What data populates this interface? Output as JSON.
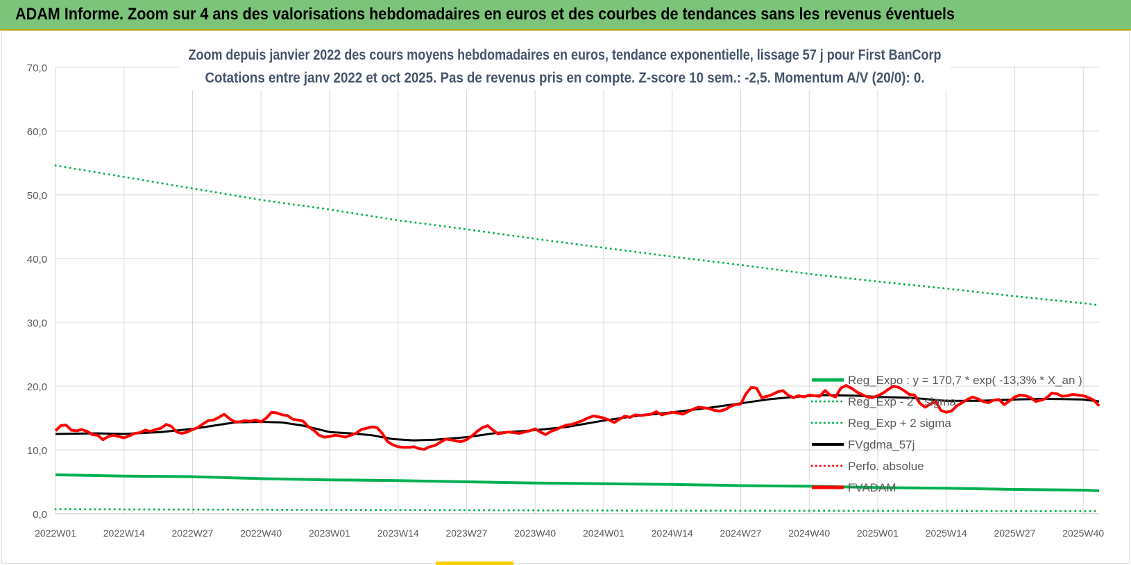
{
  "banner": {
    "title": "ADAM Informe. Zoom sur 4 ans des valorisations hebdomadaires en euros et des courbes de tendances sans les revenus éventuels",
    "color": "#7cc47a"
  },
  "chart_data": {
    "type": "line",
    "title": "Zoom depuis janvier 2022 des cours moyens hebdomadaires en euros, tendance exponentielle, lissage 57 j pour First BanCorp",
    "subtitle": "Cotations entre janv 2022 et oct 2025. Pas de revenus pris en compte. Z-score 10 sem.: -2,5.  Momentum A/V (20/0): 0.",
    "xlabel": "",
    "ylabel": "",
    "ylim": [
      0,
      70
    ],
    "yticks": [
      "0,0",
      "10,0",
      "20,0",
      "30,0",
      "40,0",
      "50,0",
      "60,0",
      "70,0"
    ],
    "ytick_values": [
      0,
      10,
      20,
      30,
      40,
      50,
      60,
      70
    ],
    "x_week_range": [
      0,
      198
    ],
    "xticks": [
      {
        "label": "2022W01",
        "week": 0
      },
      {
        "label": "2022W14",
        "week": 13
      },
      {
        "label": "2022W27",
        "week": 26
      },
      {
        "label": "2022W40",
        "week": 39
      },
      {
        "label": "2023W01",
        "week": 52
      },
      {
        "label": "2023W14",
        "week": 65
      },
      {
        "label": "2023W27",
        "week": 78
      },
      {
        "label": "2023W40",
        "week": 91
      },
      {
        "label": "2024W01",
        "week": 104
      },
      {
        "label": "2024W14",
        "week": 117
      },
      {
        "label": "2024W27",
        "week": 130
      },
      {
        "label": "2024W40",
        "week": 143
      },
      {
        "label": "2025W01",
        "week": 156
      },
      {
        "label": "2025W14",
        "week": 169
      },
      {
        "label": "2025W27",
        "week": 182
      },
      {
        "label": "2025W40",
        "week": 195
      }
    ],
    "grid": true,
    "legend_position": "bottom-right",
    "legend": [
      "Reg_Expo : y = 170,7 * exp( -13,3% *  X_an )",
      "Reg_Exp - 2 * sigma",
      "Reg_Exp + 2 sigma",
      "FVgdma_57j",
      "Perfo. absolue",
      "FVADAM"
    ],
    "series": [
      {
        "name": "Reg_Expo : y = 170,7 * exp( -13,3% *  X_an )",
        "color": "#00b050",
        "style": "solid",
        "width": 4,
        "points": [
          [
            0,
            6.1
          ],
          [
            13,
            5.9
          ],
          [
            26,
            5.8
          ],
          [
            39,
            5.5
          ],
          [
            52,
            5.3
          ],
          [
            65,
            5.2
          ],
          [
            78,
            5.0
          ],
          [
            91,
            4.8
          ],
          [
            104,
            4.7
          ],
          [
            117,
            4.6
          ],
          [
            130,
            4.4
          ],
          [
            143,
            4.3
          ],
          [
            156,
            4.1
          ],
          [
            169,
            4.0
          ],
          [
            182,
            3.8
          ],
          [
            195,
            3.7
          ],
          [
            198,
            3.6
          ]
        ]
      },
      {
        "name": "Reg_Exp - 2 * sigma",
        "color": "#00b050",
        "style": "dotted",
        "width": 3,
        "points": [
          [
            0,
            0.7
          ],
          [
            52,
            0.6
          ],
          [
            104,
            0.5
          ],
          [
            156,
            0.45
          ],
          [
            198,
            0.4
          ]
        ]
      },
      {
        "name": "Reg_Exp + 2 sigma",
        "color": "#00b050",
        "style": "dotted",
        "width": 3,
        "points": [
          [
            0,
            54.6
          ],
          [
            13,
            52.8
          ],
          [
            26,
            51.0
          ],
          [
            39,
            49.2
          ],
          [
            52,
            47.7
          ],
          [
            65,
            46.0
          ],
          [
            78,
            44.6
          ],
          [
            91,
            43.1
          ],
          [
            104,
            41.7
          ],
          [
            117,
            40.3
          ],
          [
            130,
            39.0
          ],
          [
            143,
            37.6
          ],
          [
            156,
            36.4
          ],
          [
            169,
            35.3
          ],
          [
            182,
            34.1
          ],
          [
            195,
            33.0
          ],
          [
            198,
            32.7
          ]
        ]
      },
      {
        "name": "FVgdma_57j",
        "color": "#000000",
        "style": "solid",
        "width": 3,
        "points": [
          [
            0,
            12.5
          ],
          [
            8,
            12.6
          ],
          [
            13,
            12.5
          ],
          [
            20,
            12.8
          ],
          [
            26,
            13.3
          ],
          [
            30,
            13.8
          ],
          [
            34,
            14.3
          ],
          [
            39,
            14.4
          ],
          [
            43,
            14.3
          ],
          [
            47,
            13.8
          ],
          [
            52,
            12.8
          ],
          [
            56,
            12.6
          ],
          [
            60,
            12.3
          ],
          [
            64,
            11.7
          ],
          [
            68,
            11.5
          ],
          [
            72,
            11.6
          ],
          [
            78,
            12.0
          ],
          [
            84,
            12.7
          ],
          [
            91,
            13.1
          ],
          [
            97,
            13.6
          ],
          [
            104,
            14.6
          ],
          [
            110,
            15.3
          ],
          [
            117,
            15.9
          ],
          [
            124,
            16.6
          ],
          [
            130,
            17.3
          ],
          [
            135,
            17.9
          ],
          [
            140,
            18.3
          ],
          [
            146,
            18.6
          ],
          [
            152,
            18.5
          ],
          [
            156,
            18.3
          ],
          [
            162,
            18.2
          ],
          [
            169,
            17.7
          ],
          [
            175,
            17.7
          ],
          [
            182,
            17.9
          ],
          [
            188,
            18.0
          ],
          [
            195,
            17.9
          ],
          [
            198,
            17.6
          ]
        ]
      },
      {
        "name": "FVADAM",
        "color": "#ff0000",
        "style": "solid",
        "width": 4,
        "points": [
          [
            0,
            13.0
          ],
          [
            1,
            13.8
          ],
          [
            2,
            13.9
          ],
          [
            3,
            13.1
          ],
          [
            4,
            13.0
          ],
          [
            5,
            13.2
          ],
          [
            6,
            12.9
          ],
          [
            7,
            12.4
          ],
          [
            8,
            12.3
          ],
          [
            9,
            11.6
          ],
          [
            10,
            12.1
          ],
          [
            11,
            12.3
          ],
          [
            12,
            12.1
          ],
          [
            13,
            11.9
          ],
          [
            14,
            12.2
          ],
          [
            15,
            12.6
          ],
          [
            16,
            12.7
          ],
          [
            17,
            13.1
          ],
          [
            18,
            12.9
          ],
          [
            19,
            13.2
          ],
          [
            20,
            13.4
          ],
          [
            21,
            14.0
          ],
          [
            22,
            13.7
          ],
          [
            23,
            12.8
          ],
          [
            24,
            12.6
          ],
          [
            25,
            12.8
          ],
          [
            26,
            13.2
          ],
          [
            27,
            13.5
          ],
          [
            28,
            14.1
          ],
          [
            29,
            14.6
          ],
          [
            30,
            14.7
          ],
          [
            31,
            15.1
          ],
          [
            32,
            15.6
          ],
          [
            33,
            14.9
          ],
          [
            34,
            14.4
          ],
          [
            35,
            14.4
          ],
          [
            36,
            14.6
          ],
          [
            37,
            14.5
          ],
          [
            38,
            14.7
          ],
          [
            39,
            14.4
          ],
          [
            40,
            15.0
          ],
          [
            41,
            15.9
          ],
          [
            42,
            15.8
          ],
          [
            43,
            15.5
          ],
          [
            44,
            15.4
          ],
          [
            45,
            14.8
          ],
          [
            46,
            14.7
          ],
          [
            47,
            14.5
          ],
          [
            48,
            13.6
          ],
          [
            49,
            13.1
          ],
          [
            50,
            12.3
          ],
          [
            51,
            12.0
          ],
          [
            52,
            12.1
          ],
          [
            53,
            12.3
          ],
          [
            54,
            12.2
          ],
          [
            55,
            12.0
          ],
          [
            56,
            12.3
          ],
          [
            57,
            12.6
          ],
          [
            58,
            13.2
          ],
          [
            59,
            13.4
          ],
          [
            60,
            13.6
          ],
          [
            61,
            13.5
          ],
          [
            62,
            12.6
          ],
          [
            63,
            11.3
          ],
          [
            64,
            10.8
          ],
          [
            65,
            10.5
          ],
          [
            66,
            10.4
          ],
          [
            67,
            10.4
          ],
          [
            68,
            10.5
          ],
          [
            69,
            10.2
          ],
          [
            70,
            10.1
          ],
          [
            71,
            10.5
          ],
          [
            72,
            10.7
          ],
          [
            73,
            11.2
          ],
          [
            74,
            11.7
          ],
          [
            75,
            11.6
          ],
          [
            76,
            11.4
          ],
          [
            77,
            11.3
          ],
          [
            78,
            11.6
          ],
          [
            79,
            12.2
          ],
          [
            80,
            12.9
          ],
          [
            81,
            13.5
          ],
          [
            82,
            13.8
          ],
          [
            83,
            13.1
          ],
          [
            84,
            12.5
          ],
          [
            85,
            12.7
          ],
          [
            86,
            12.8
          ],
          [
            87,
            12.7
          ],
          [
            88,
            12.6
          ],
          [
            89,
            12.8
          ],
          [
            90,
            13.0
          ],
          [
            91,
            13.3
          ],
          [
            92,
            12.8
          ],
          [
            93,
            12.4
          ],
          [
            94,
            12.9
          ],
          [
            95,
            13.2
          ],
          [
            96,
            13.6
          ],
          [
            97,
            13.9
          ],
          [
            98,
            14.0
          ],
          [
            99,
            14.3
          ],
          [
            100,
            14.6
          ],
          [
            101,
            15.0
          ],
          [
            102,
            15.3
          ],
          [
            103,
            15.2
          ],
          [
            104,
            15.0
          ],
          [
            105,
            14.7
          ],
          [
            106,
            14.3
          ],
          [
            107,
            14.8
          ],
          [
            108,
            15.3
          ],
          [
            109,
            15.1
          ],
          [
            110,
            15.5
          ],
          [
            111,
            15.4
          ],
          [
            112,
            15.5
          ],
          [
            113,
            15.6
          ],
          [
            114,
            16.0
          ],
          [
            115,
            15.5
          ],
          [
            116,
            15.7
          ],
          [
            117,
            15.9
          ],
          [
            118,
            15.8
          ],
          [
            119,
            15.6
          ],
          [
            120,
            16.0
          ],
          [
            121,
            16.4
          ],
          [
            122,
            16.7
          ],
          [
            123,
            16.6
          ],
          [
            124,
            16.5
          ],
          [
            125,
            16.2
          ],
          [
            126,
            16.1
          ],
          [
            127,
            16.3
          ],
          [
            128,
            16.8
          ],
          [
            129,
            17.1
          ],
          [
            130,
            17.2
          ],
          [
            131,
            18.8
          ],
          [
            132,
            19.8
          ],
          [
            133,
            19.7
          ],
          [
            134,
            18.2
          ],
          [
            135,
            18.4
          ],
          [
            136,
            18.7
          ],
          [
            137,
            19.1
          ],
          [
            138,
            19.3
          ],
          [
            139,
            18.6
          ],
          [
            140,
            18.2
          ],
          [
            141,
            18.5
          ],
          [
            142,
            18.3
          ],
          [
            143,
            18.6
          ],
          [
            144,
            18.5
          ],
          [
            145,
            18.4
          ],
          [
            146,
            19.3
          ],
          [
            147,
            18.6
          ],
          [
            148,
            18.3
          ],
          [
            149,
            19.7
          ],
          [
            150,
            20.1
          ],
          [
            151,
            19.7
          ],
          [
            152,
            19.1
          ],
          [
            153,
            18.7
          ],
          [
            154,
            18.3
          ],
          [
            155,
            18.2
          ],
          [
            156,
            18.5
          ],
          [
            157,
            18.9
          ],
          [
            158,
            19.5
          ],
          [
            159,
            20.0
          ],
          [
            160,
            19.8
          ],
          [
            161,
            19.3
          ],
          [
            162,
            18.7
          ],
          [
            163,
            18.6
          ],
          [
            164,
            17.3
          ],
          [
            165,
            16.7
          ],
          [
            166,
            17.2
          ],
          [
            167,
            17.6
          ],
          [
            168,
            16.2
          ],
          [
            169,
            15.9
          ],
          [
            170,
            16.1
          ],
          [
            171,
            16.9
          ],
          [
            172,
            17.4
          ],
          [
            173,
            17.9
          ],
          [
            174,
            18.3
          ],
          [
            175,
            18.0
          ],
          [
            176,
            17.6
          ],
          [
            177,
            17.4
          ],
          [
            178,
            17.8
          ],
          [
            179,
            17.9
          ],
          [
            180,
            17.1
          ],
          [
            181,
            17.7
          ],
          [
            182,
            18.3
          ],
          [
            183,
            18.6
          ],
          [
            184,
            18.5
          ],
          [
            185,
            18.2
          ],
          [
            186,
            17.6
          ],
          [
            187,
            17.8
          ],
          [
            188,
            18.1
          ],
          [
            189,
            18.9
          ],
          [
            190,
            18.8
          ],
          [
            191,
            18.4
          ],
          [
            192,
            18.5
          ],
          [
            193,
            18.7
          ],
          [
            194,
            18.6
          ],
          [
            195,
            18.5
          ],
          [
            196,
            18.2
          ],
          [
            197,
            17.8
          ],
          [
            198,
            16.9
          ]
        ]
      }
    ]
  }
}
